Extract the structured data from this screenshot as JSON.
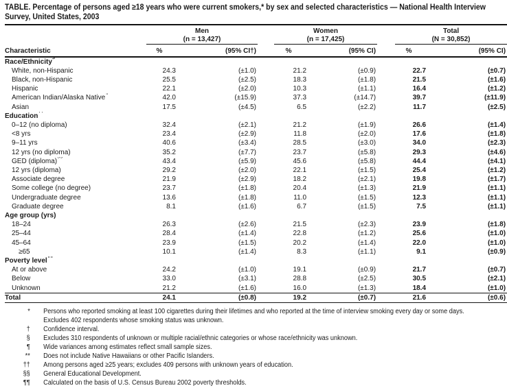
{
  "title": "TABLE. Percentage of persons aged ≥18 years who were current smokers,* by sex and selected characteristics — National Health Interview Survey, United States, 2003",
  "table": {
    "characteristic_label": "Characteristic",
    "groups": [
      {
        "name": "Men",
        "n": "(n = 13,427)",
        "pct_label": "%",
        "ci_label": "(95% CI†)"
      },
      {
        "name": "Women",
        "n": "(n = 17,425)",
        "pct_label": "%",
        "ci_label": "(95% CI)"
      },
      {
        "name": "Total",
        "n": "(N = 30,852)",
        "pct_label": "%",
        "ci_label": "(95% CI)"
      }
    ],
    "sections": [
      {
        "header": "Race/Ethnicity",
        "sup": "§",
        "rows": [
          {
            "label": "White, non-Hispanic",
            "men_pct": "24.3",
            "men_ci": "(±1.0)",
            "women_pct": "21.2",
            "women_ci": "(±0.9)",
            "total_pct": "22.7",
            "total_ci": "(±0.7)"
          },
          {
            "label": "Black, non-Hispanic",
            "men_pct": "25.5",
            "men_ci": "(±2.5)",
            "women_pct": "18.3",
            "women_ci": "(±1.8)",
            "total_pct": "21.5",
            "total_ci": "(±1.6)"
          },
          {
            "label": "Hispanic",
            "men_pct": "22.1",
            "men_ci": "(±2.0)",
            "women_pct": "10.3",
            "women_ci": "(±1.1)",
            "total_pct": "16.4",
            "total_ci": "(±1.2)"
          },
          {
            "label": "American Indian/Alaska Native",
            "sup": "¶",
            "men_pct": "42.0",
            "men_ci": "(±15.9)",
            "women_pct": "37.3",
            "women_ci": "(±14.7)",
            "total_pct": "39.7",
            "total_ci": "(±11.9)"
          },
          {
            "label": "Asian",
            "sup": "**",
            "men_pct": "17.5",
            "men_ci": "(±4.5)",
            "women_pct": "6.5",
            "women_ci": "(±2.2)",
            "total_pct": "11.7",
            "total_ci": "(±2.5)"
          }
        ]
      },
      {
        "header": "Education",
        "sup": "††",
        "rows": [
          {
            "label": "0–12 (no diploma)",
            "men_pct": "32.4",
            "men_ci": "(±2.1)",
            "women_pct": "21.2",
            "women_ci": "(±1.9)",
            "total_pct": "26.6",
            "total_ci": "(±1.4)"
          },
          {
            "label": "<8 yrs",
            "men_pct": "23.4",
            "men_ci": "(±2.9)",
            "women_pct": "11.8",
            "women_ci": "(±2.0)",
            "total_pct": "17.6",
            "total_ci": "(±1.8)"
          },
          {
            "label": "9–11 yrs",
            "men_pct": "40.6",
            "men_ci": "(±3.4)",
            "women_pct": "28.5",
            "women_ci": "(±3.0)",
            "total_pct": "34.0",
            "total_ci": "(±2.3)"
          },
          {
            "label": "12 yrs (no diploma)",
            "men_pct": "35.2",
            "men_ci": "(±7.7)",
            "women_pct": "23.7",
            "women_ci": "(±5.8)",
            "total_pct": "29.3",
            "total_ci": "(±4.6)"
          },
          {
            "label": "GED (diploma)",
            "sup": "§§",
            "men_pct": "43.4",
            "men_ci": "(±5.9)",
            "women_pct": "45.6",
            "women_ci": "(±5.8)",
            "total_pct": "44.4",
            "total_ci": "(±4.1)"
          },
          {
            "label": "12 yrs (diploma)",
            "men_pct": "29.2",
            "men_ci": "(±2.0)",
            "women_pct": "22.1",
            "women_ci": "(±1.5)",
            "total_pct": "25.4",
            "total_ci": "(±1.2)"
          },
          {
            "label": "Associate degree",
            "men_pct": "21.9",
            "men_ci": "(±2.9)",
            "women_pct": "18.2",
            "women_ci": "(±2.1)",
            "total_pct": "19.8",
            "total_ci": "(±1.7)"
          },
          {
            "label": "Some college (no degree)",
            "men_pct": "23.7",
            "men_ci": "(±1.8)",
            "women_pct": "20.4",
            "women_ci": "(±1.3)",
            "total_pct": "21.9",
            "total_ci": "(±1.1)"
          },
          {
            "label": "Undergraduate degree",
            "men_pct": "13.6",
            "men_ci": "(±1.8)",
            "women_pct": "11.0",
            "women_ci": "(±1.5)",
            "total_pct": "12.3",
            "total_ci": "(±1.1)"
          },
          {
            "label": "Graduate degree",
            "men_pct": "8.1",
            "men_ci": "(±1.6)",
            "women_pct": "6.7",
            "women_ci": "(±1.5)",
            "total_pct": "7.5",
            "total_ci": "(±1.1)"
          }
        ]
      },
      {
        "header": "Age group (yrs)",
        "rows": [
          {
            "label": "18–24",
            "men_pct": "26.3",
            "men_ci": "(±2.6)",
            "women_pct": "21.5",
            "women_ci": "(±2.3)",
            "total_pct": "23.9",
            "total_ci": "(±1.8)"
          },
          {
            "label": "25–44",
            "men_pct": "28.4",
            "men_ci": "(±1.4)",
            "women_pct": "22.8",
            "women_ci": "(±1.2)",
            "total_pct": "25.6",
            "total_ci": "(±1.0)"
          },
          {
            "label": "45–64",
            "men_pct": "23.9",
            "men_ci": "(±1.5)",
            "women_pct": "20.2",
            "women_ci": "(±1.4)",
            "total_pct": "22.0",
            "total_ci": "(±1.0)"
          },
          {
            "label": "≥65",
            "indent": 2,
            "men_pct": "10.1",
            "men_ci": "(±1.4)",
            "women_pct": "8.3",
            "women_ci": "(±1.1)",
            "total_pct": "9.1",
            "total_ci": "(±0.9)"
          }
        ]
      },
      {
        "header": "Poverty level",
        "sup": "¶¶",
        "rows": [
          {
            "label": "At or above",
            "men_pct": "24.2",
            "men_ci": "(±1.0)",
            "women_pct": "19.1",
            "women_ci": "(±0.9)",
            "total_pct": "21.7",
            "total_ci": "(±0.7)"
          },
          {
            "label": "Below",
            "men_pct": "33.0",
            "men_ci": "(±3.1)",
            "women_pct": "28.8",
            "women_ci": "(±2.5)",
            "total_pct": "30.5",
            "total_ci": "(±2.1)"
          },
          {
            "label": "Unknown",
            "men_pct": "21.2",
            "men_ci": "(±1.6)",
            "women_pct": "16.0",
            "women_ci": "(±1.3)",
            "total_pct": "18.4",
            "total_ci": "(±1.0)"
          }
        ]
      }
    ],
    "total_row": {
      "label": "Total",
      "men_pct": "24.1",
      "men_ci": "(±0.8)",
      "women_pct": "19.2",
      "women_ci": "(±0.7)",
      "total_pct": "21.6",
      "total_ci": "(±0.6)"
    }
  },
  "footnotes": [
    {
      "marker": "*",
      "text": "Persons who reported smoking at least 100 cigarettes during their lifetimes and who reported at the time of interview smoking every day or some days.\nExcludes 402 respondents whose smoking status was unknown."
    },
    {
      "marker": "†",
      "text": "Confidence interval."
    },
    {
      "marker": "§",
      "text": "Excludes 310 respondents of unknown or multiple racial/ethnic categories or whose race/ethnicity was unknown."
    },
    {
      "marker": "¶",
      "text": "Wide variances among estimates reflect small sample sizes."
    },
    {
      "marker": "**",
      "text": "Does not include Native Hawaiians or other Pacific Islanders."
    },
    {
      "marker": "††",
      "text": "Among persons aged ≥25 years; excludes 409 persons with unknown years of education."
    },
    {
      "marker": "§§",
      "text": "General Educational Development."
    },
    {
      "marker": "¶¶",
      "text": "Calculated on the basis of U.S. Census Bureau 2002 poverty thresholds."
    }
  ]
}
